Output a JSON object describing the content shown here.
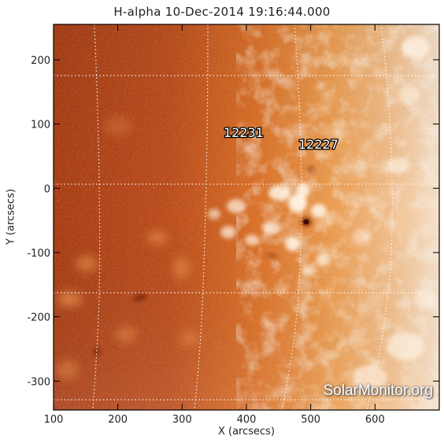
{
  "title": "H-alpha 10-Dec-2014 19:16:44.000",
  "x_axis": {
    "label": "X (arcsecs)",
    "range": [
      100,
      700
    ],
    "ticks": [
      100,
      200,
      300,
      400,
      500,
      600
    ]
  },
  "y_axis": {
    "label": "Y (arcsecs)",
    "range": [
      -345,
      255
    ],
    "ticks": [
      200,
      100,
      0,
      -100,
      -200,
      -300
    ]
  },
  "active_regions": [
    {
      "id": "12231",
      "x": 390,
      "y": 85
    },
    {
      "id": "12227",
      "x": 490,
      "y": 68
    }
  ],
  "watermark": "SolarMonitor.org",
  "colors": {
    "disk_dark": "#a8360a",
    "disk_mid": "#e07020",
    "disk_light": "#f8d8b8",
    "grid": "#ffffff",
    "frame": "#000000"
  }
}
